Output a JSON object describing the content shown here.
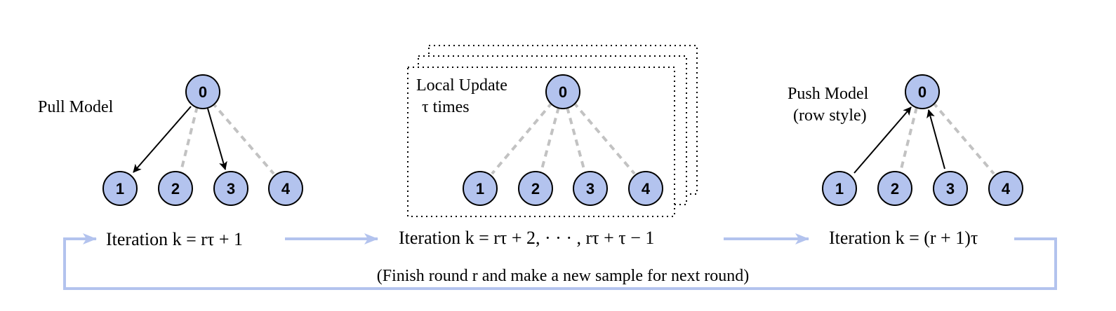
{
  "panels": {
    "pull": {
      "title": "Pull Model",
      "root": "0",
      "children": [
        "1",
        "2",
        "3",
        "4"
      ],
      "iteration": "Iteration k = rτ + 1"
    },
    "local": {
      "title_line1": "Local Update",
      "title_line2": "τ times",
      "root": "0",
      "children": [
        "1",
        "2",
        "3",
        "4"
      ],
      "iteration": "Iteration k = rτ + 2, · · · ,  rτ + τ − 1"
    },
    "push": {
      "title_line1": "Push Model",
      "title_line2": "(row style)",
      "root": "0",
      "children": [
        "1",
        "2",
        "3",
        "4"
      ],
      "iteration": "Iteration k = (r + 1)τ"
    }
  },
  "footer": "(Finish round r and make a new sample for next round)",
  "colors": {
    "node_fill": "#b3c3ee",
    "flow_arrow": "#b3c3ee",
    "dashed_edge": "#c2c2c2"
  }
}
